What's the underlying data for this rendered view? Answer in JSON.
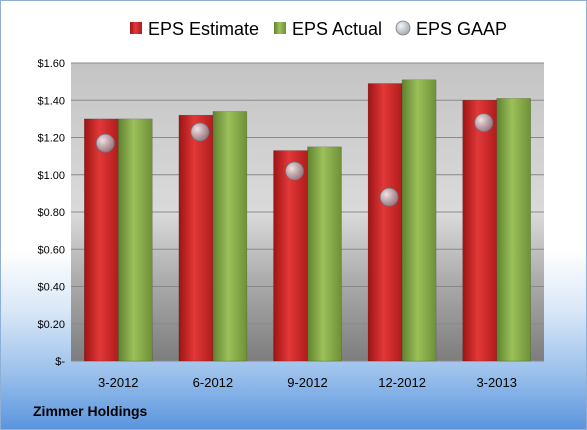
{
  "company": "Zimmer Holdings",
  "colors": {
    "estimate": "#d42a2a",
    "actual": "#8cb04a",
    "gaap": "#b8bec8"
  },
  "chart_data": {
    "type": "bar",
    "categories": [
      "3-2012",
      "6-2012",
      "9-2012",
      "12-2012",
      "3-2013"
    ],
    "series": [
      {
        "name": "EPS Estimate",
        "kind": "bar",
        "values": [
          1.3,
          1.32,
          1.13,
          1.49,
          1.4
        ]
      },
      {
        "name": "EPS Actual",
        "kind": "bar",
        "values": [
          1.3,
          1.34,
          1.15,
          1.51,
          1.41
        ]
      },
      {
        "name": "EPS GAAP",
        "kind": "marker",
        "values": [
          1.17,
          1.23,
          1.02,
          0.88,
          1.28
        ]
      }
    ],
    "ylim": [
      0,
      1.6
    ],
    "ytick_labels": [
      "$-",
      "$0.20",
      "$0.40",
      "$0.60",
      "$0.80",
      "$1.00",
      "$1.20",
      "$1.40",
      "$1.60"
    ],
    "grid": true,
    "legend": "top"
  }
}
